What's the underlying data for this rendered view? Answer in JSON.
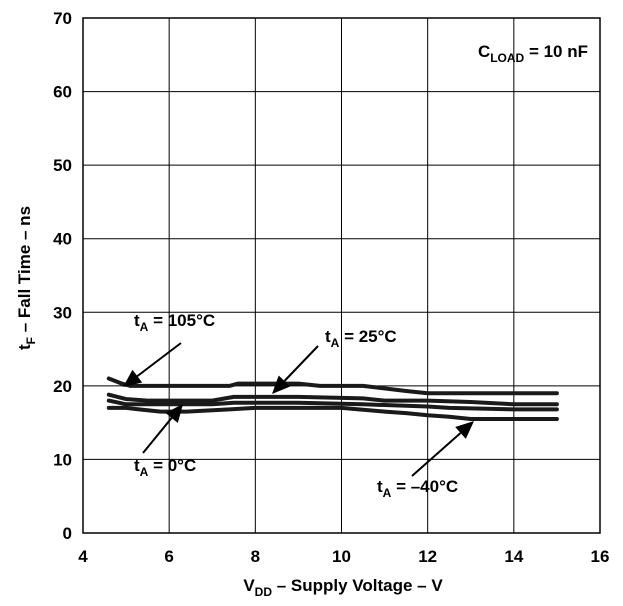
{
  "chart_data": {
    "type": "line",
    "xlabel": {
      "main": "V",
      "sub": "DD",
      "rest": " – Supply Voltage – V"
    },
    "ylabel": {
      "main": "t",
      "sub": "F",
      "rest": " – Fall Time – ns"
    },
    "xlim": [
      4,
      16
    ],
    "ylim": [
      0,
      70
    ],
    "xticks": [
      4,
      6,
      8,
      10,
      12,
      14,
      16
    ],
    "yticks": [
      0,
      10,
      20,
      30,
      40,
      50,
      60,
      70
    ],
    "grid": true,
    "condition": {
      "main": "C",
      "sub": "LOAD",
      "rest": " = 10 nF"
    },
    "series": [
      {
        "name": "105°C",
        "label": {
          "main": "t",
          "sub": "A",
          "rest": " = 105°C"
        },
        "x": [
          4.6,
          4.9,
          5.1,
          5.5,
          7.4,
          7.6,
          9.0,
          9.5,
          10.5,
          11.5,
          12.0,
          15.0
        ],
        "y": [
          21.0,
          20.3,
          20.0,
          20.0,
          20.0,
          20.3,
          20.3,
          20.0,
          20.0,
          19.3,
          19.0,
          19.0
        ]
      },
      {
        "name": "25°C",
        "label": {
          "main": "t",
          "sub": "A",
          "rest": " = 25°C"
        },
        "x": [
          4.6,
          5.0,
          5.5,
          7.0,
          7.5,
          9.0,
          10.5,
          11.0,
          12.0,
          13.0,
          14.0,
          15.0
        ],
        "y": [
          18.8,
          18.2,
          18.0,
          18.0,
          18.5,
          18.5,
          18.3,
          18.0,
          18.0,
          17.8,
          17.5,
          17.5
        ]
      },
      {
        "name": "0°C",
        "label": {
          "main": "t",
          "sub": "A",
          "rest": " = 0°C"
        },
        "x": [
          4.6,
          5.0,
          5.5,
          7.0,
          7.5,
          9.0,
          10.5,
          12.0,
          12.5,
          14.0,
          15.0
        ],
        "y": [
          18.0,
          17.5,
          17.5,
          17.5,
          17.7,
          17.7,
          17.5,
          17.2,
          17.0,
          16.8,
          16.8
        ]
      },
      {
        "name": "-40°C",
        "label": {
          "main": "t",
          "sub": "A",
          "rest": " = –40°C"
        },
        "x": [
          4.6,
          5.0,
          5.3,
          5.8,
          6.4,
          7.4,
          8.0,
          9.0,
          10.0,
          11.0,
          11.5,
          12.0,
          12.5,
          13.0,
          15.0
        ],
        "y": [
          17.0,
          17.0,
          16.8,
          16.5,
          16.5,
          16.8,
          17.0,
          17.0,
          17.0,
          16.5,
          16.3,
          16.0,
          15.8,
          15.5,
          15.5
        ]
      }
    ]
  }
}
